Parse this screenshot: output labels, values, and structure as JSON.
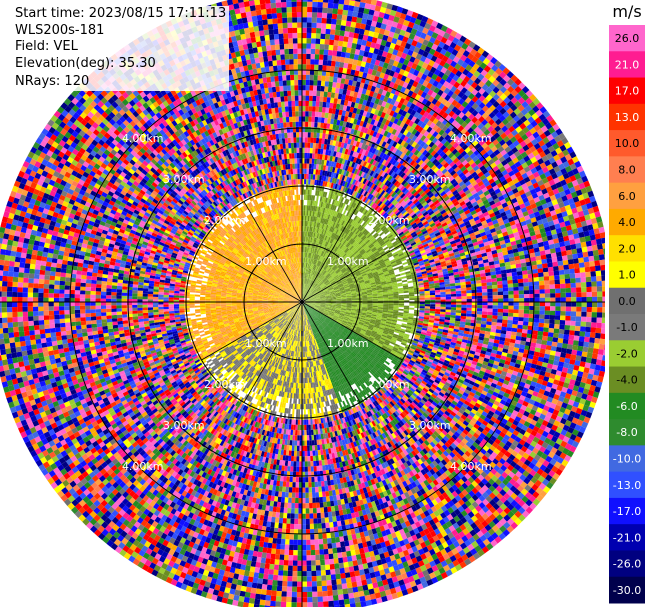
{
  "info": {
    "start_time": "Start time: 2023/08/15 17:11:13",
    "instrument": "WLS200s-181",
    "field": "Field: VEL",
    "elevation": "Elevation(deg): 35.30",
    "nrays": "NRays: 120"
  },
  "colorbar": {
    "unit": "m/s",
    "ticks": [
      "26.0",
      "21.0",
      "17.0",
      "13.0",
      "10.0",
      "8.0",
      "6.0",
      "4.0",
      "2.0",
      "1.0",
      "0.0",
      "-1.0",
      "-2.0",
      "-4.0",
      "-6.0",
      "-8.0",
      "-10.0",
      "-13.0",
      "-17.0",
      "-21.0",
      "-26.0",
      "-30.0"
    ],
    "colors": [
      "#ff66cc",
      "#ff1c91",
      "#ff0000",
      "#ff3300",
      "#ff5a2c",
      "#ff7f50",
      "#ffa040",
      "#ffaa00",
      "#ffe000",
      "#ffff00",
      "#707070",
      "#7a7a7a",
      "#9acd32",
      "#6b8e23",
      "#228b22",
      "#2e8b2e",
      "#4169e1",
      "#3050ff",
      "#1010ff",
      "#0000b0",
      "#000080",
      "#00004c"
    ]
  },
  "chart_data": {
    "type": "heatmap",
    "projection": "polar PPI",
    "field": "VEL",
    "unit": "m/s",
    "nrays": 120,
    "range_rings_km": [
      1,
      2,
      3,
      4
    ],
    "ring_labels": [
      "1.00km",
      "2.00km",
      "3.00km",
      "4.00km"
    ],
    "value_range": [
      -30,
      26
    ],
    "sectors": [
      {
        "azimuth_deg": [
          240,
          360
        ],
        "range_km": [
          0,
          2.0
        ],
        "velocity_ms": [
          1.0,
          6.0
        ],
        "color_hint": "yellow/orange"
      },
      {
        "azimuth_deg": [
          0,
          120
        ],
        "range_km": [
          0,
          2.0
        ],
        "velocity_ms": [
          -6.0,
          -2.0
        ],
        "color_hint": "green"
      },
      {
        "azimuth_deg": [
          120,
          160
        ],
        "range_km": [
          0,
          2.0
        ],
        "velocity_ms": [
          -10.0,
          -6.0
        ],
        "color_hint": "blue"
      },
      {
        "azimuth_deg": [
          160,
          240
        ],
        "range_km": [
          0,
          2.0
        ],
        "velocity_ms": [
          -2.0,
          2.0
        ],
        "color_hint": "gray/yellow"
      },
      {
        "azimuth_deg": [
          0,
          360
        ],
        "range_km": [
          2.0,
          4.5
        ],
        "velocity_ms": [
          -30.0,
          26.0
        ],
        "color_hint": "noise"
      }
    ],
    "grid": true
  }
}
